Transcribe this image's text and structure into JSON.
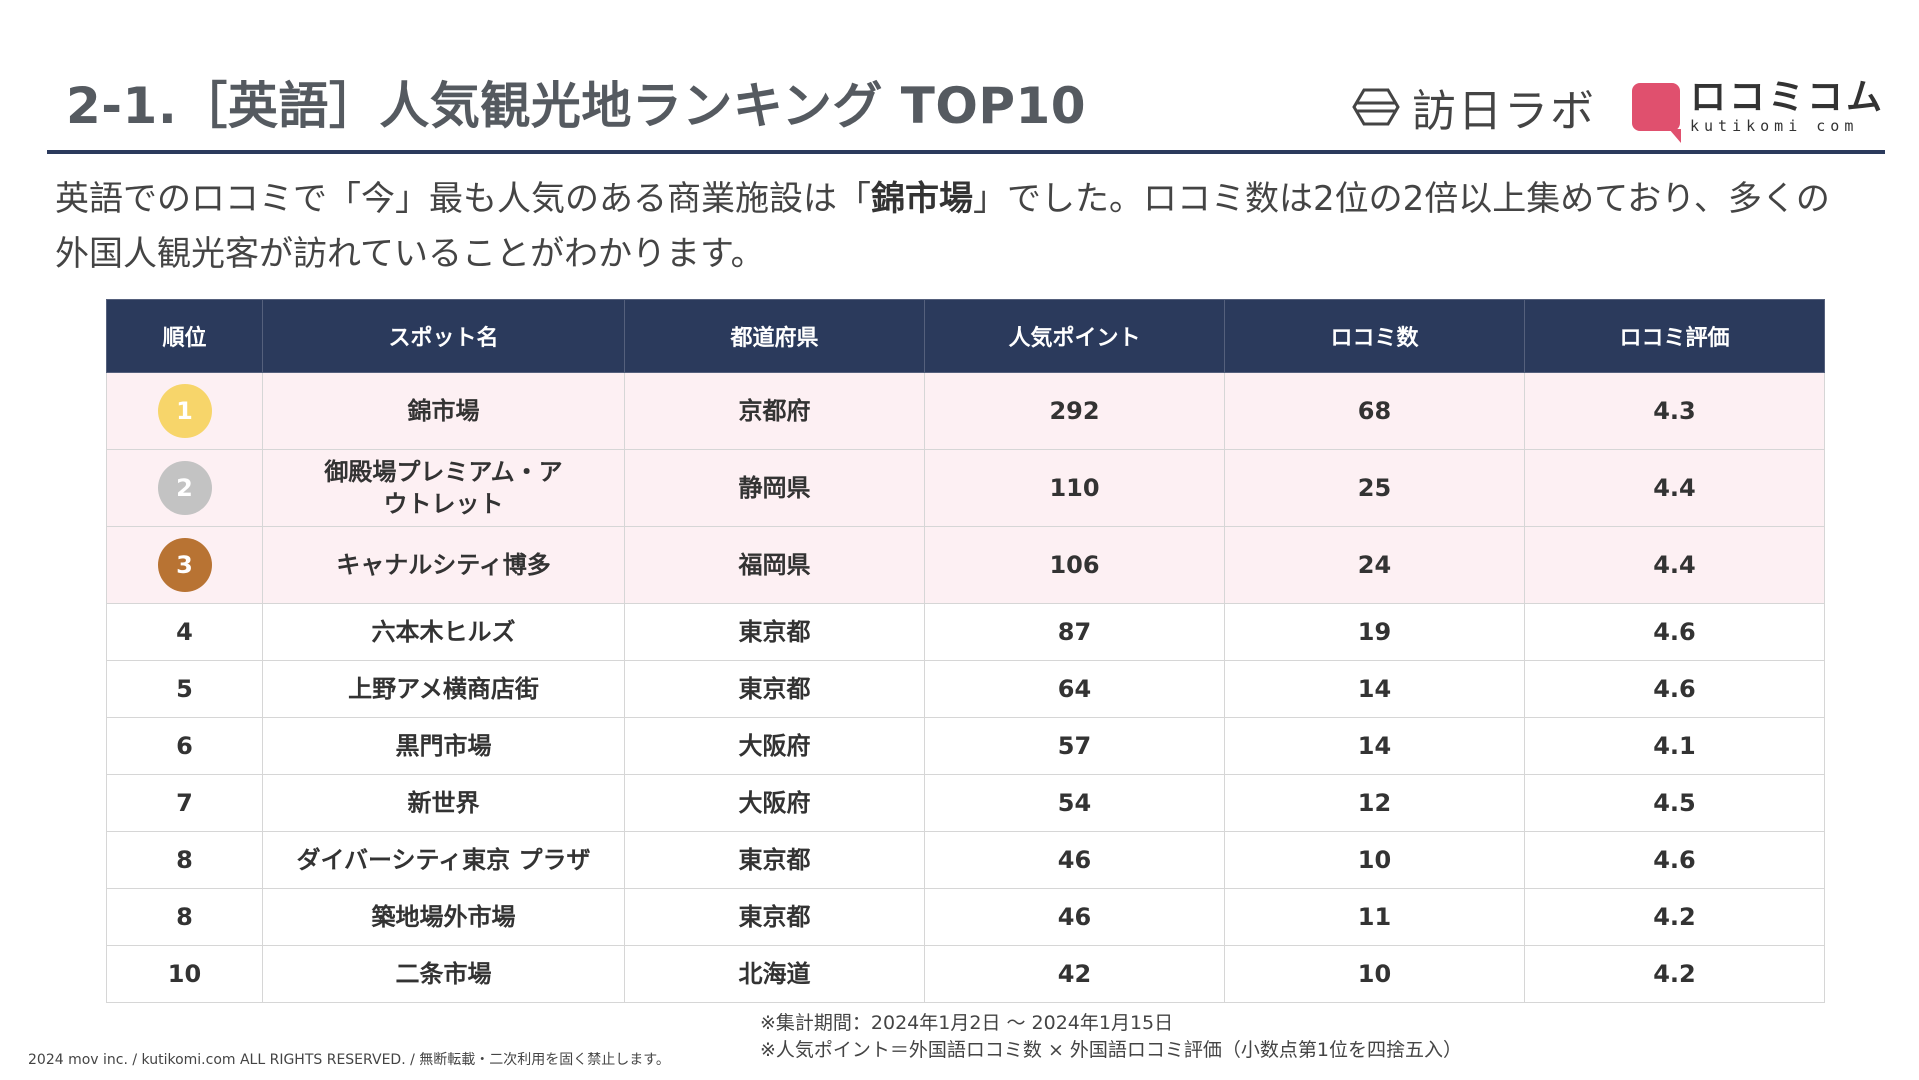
{
  "title": "2-1.［英語］人気観光地ランキング TOP10",
  "logos": {
    "houjin": "訪日ラボ",
    "kutikomi_jp": "ロコミコム",
    "kutikomi_en": "kutikomi com",
    "brand_color": "#e0506e"
  },
  "lead": {
    "part1": "英語でのロコミで「今」最も人気のある商業施設は「",
    "highlight": "錦市場",
    "part2": "」でした。ロコミ数は2位の2倍以上集めており、多くの外国人観光客が訪れていることがわかります。"
  },
  "table": {
    "headers": [
      "順位",
      "スポット名",
      "都道府県",
      "人気ポイント",
      "ロコミ数",
      "ロコミ評価"
    ],
    "header_color": "#2b3a5c",
    "medal_colors": [
      "#f7d56a",
      "#c3c3c3",
      "#b87333"
    ],
    "rows": [
      {
        "rank": "1",
        "spot": "錦市場",
        "pref": "京都府",
        "points": "292",
        "count": "68",
        "rating": "4.3"
      },
      {
        "rank": "2",
        "spot": "御殿場プレミアム・アウトレット",
        "pref": "静岡県",
        "points": "110",
        "count": "25",
        "rating": "4.4"
      },
      {
        "rank": "3",
        "spot": "キャナルシティ博多",
        "pref": "福岡県",
        "points": "106",
        "count": "24",
        "rating": "4.4"
      },
      {
        "rank": "4",
        "spot": "六本木ヒルズ",
        "pref": "東京都",
        "points": "87",
        "count": "19",
        "rating": "4.6"
      },
      {
        "rank": "5",
        "spot": "上野アメ横商店街",
        "pref": "東京都",
        "points": "64",
        "count": "14",
        "rating": "4.6"
      },
      {
        "rank": "6",
        "spot": "黒門市場",
        "pref": "大阪府",
        "points": "57",
        "count": "14",
        "rating": "4.1"
      },
      {
        "rank": "7",
        "spot": "新世界",
        "pref": "大阪府",
        "points": "54",
        "count": "12",
        "rating": "4.5"
      },
      {
        "rank": "8",
        "spot": "ダイバーシティ東京 プラザ",
        "pref": "東京都",
        "points": "46",
        "count": "10",
        "rating": "4.6"
      },
      {
        "rank": "8",
        "spot": "築地場外市場",
        "pref": "東京都",
        "points": "46",
        "count": "11",
        "rating": "4.2"
      },
      {
        "rank": "10",
        "spot": "二条市場",
        "pref": "北海道",
        "points": "42",
        "count": "10",
        "rating": "4.2"
      }
    ]
  },
  "notes": {
    "period": "※集計期間：2024年1月2日 ～ 2024年1月15日",
    "formula": "※人気ポイント＝外国語ロコミ数 × 外国語ロコミ評価（小数点第1位を四捨五入）"
  },
  "copyright": "2024 mov inc. / kutikomi.com ALL RIGHTS RESERVED. / 無断転載・二次利用を固く禁止します。"
}
